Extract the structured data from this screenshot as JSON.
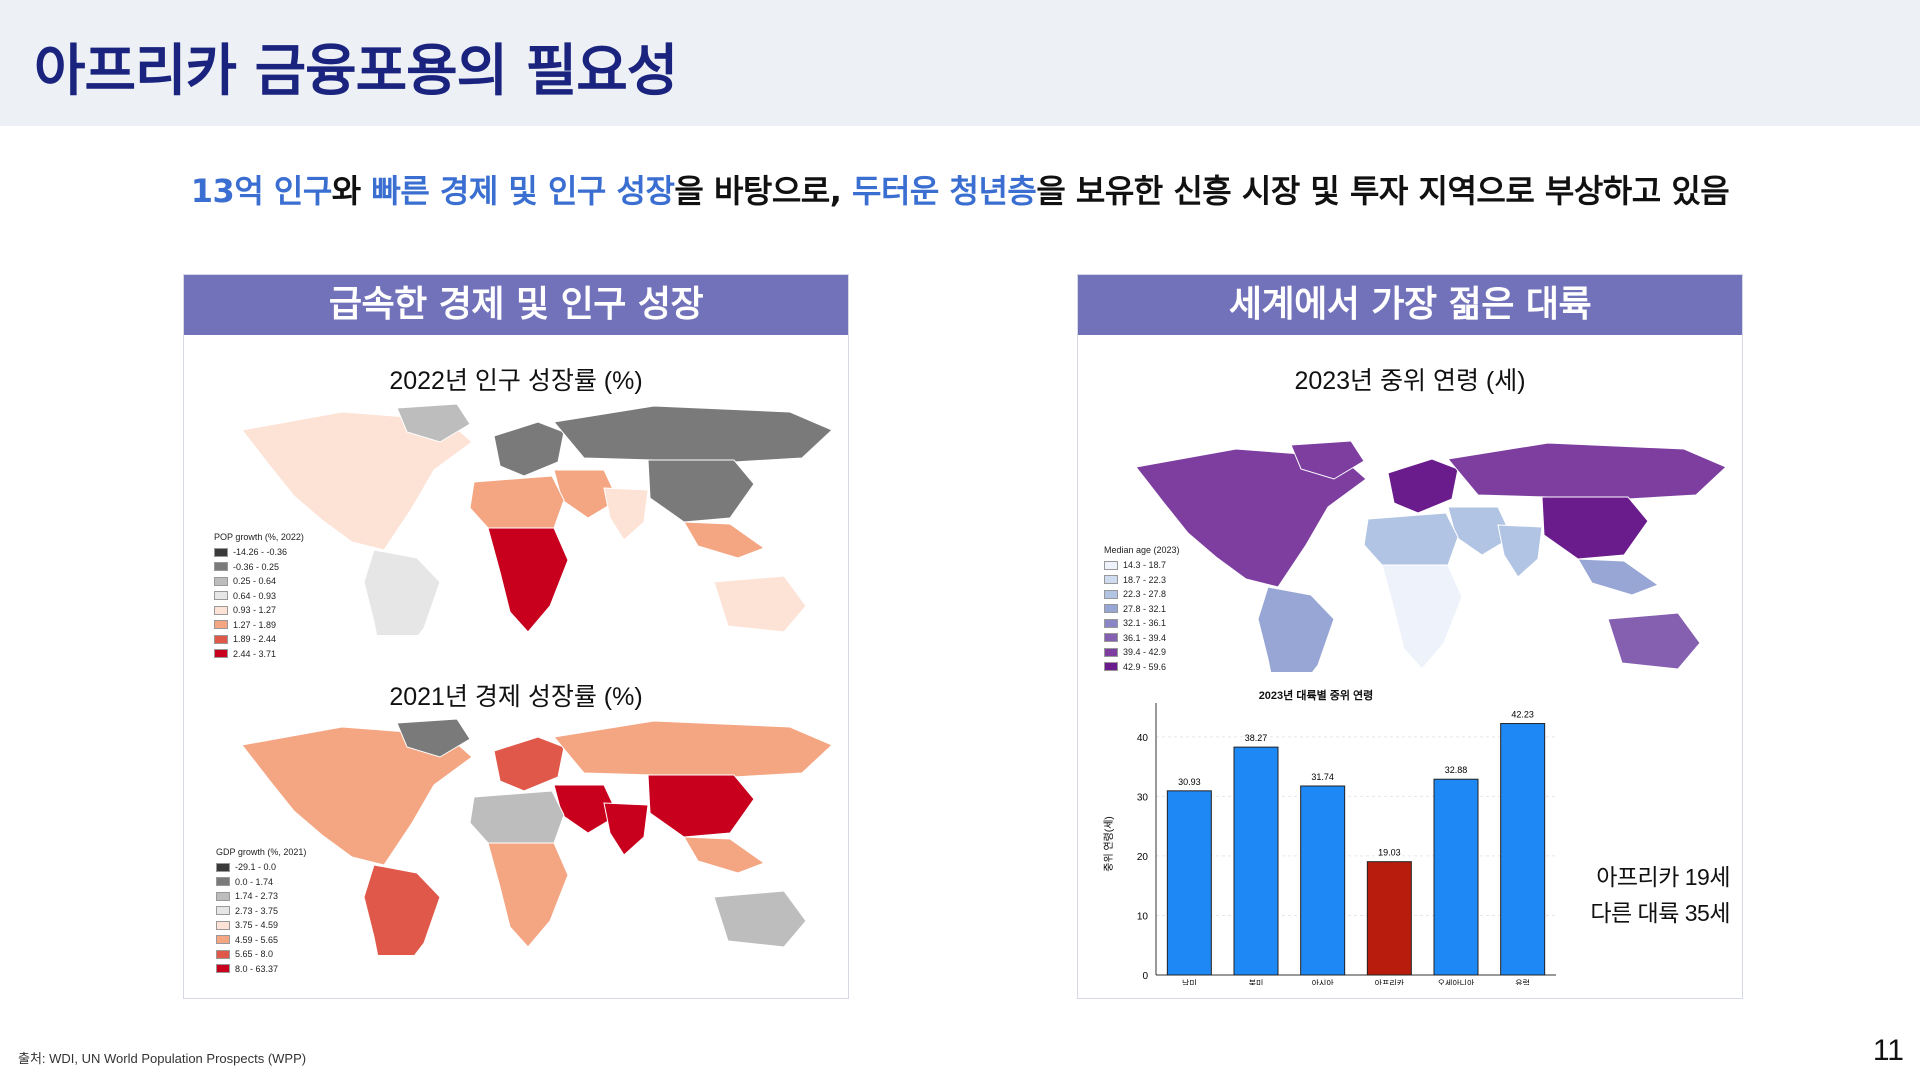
{
  "slide": {
    "title": "아프리카 금융포용의 필요성",
    "subtitle_parts": [
      {
        "text": "13억 인구",
        "highlight": true
      },
      {
        "text": "와 ",
        "highlight": false
      },
      {
        "text": "빠른 경제 및 인구 성장",
        "highlight": true
      },
      {
        "text": "을 바탕으로, ",
        "highlight": false
      },
      {
        "text": "두터운 청년층",
        "highlight": true
      },
      {
        "text": "을 보유한 신흥 시장 및 투자 지역으로 부상하고 있음",
        "highlight": false
      }
    ],
    "source": "출처: WDI, UN World Population Prospects (WPP)",
    "page_number": "11"
  },
  "colors": {
    "accent_blue": "#3a6fd1",
    "title_navy": "#1a237e",
    "panel_header": "#7272bb",
    "africa_bar": "#b71c0c",
    "other_bar": "#1e88f5"
  },
  "left_panel": {
    "header": "급속한 경제 및 인구 성장",
    "pop_map": {
      "title": "2022년 인구 성장률 (%)",
      "legend_title": "POP growth (%, 2022)",
      "legend": [
        {
          "label": "-14.26 - -0.36",
          "color": "#3a3a3a"
        },
        {
          "label": "-0.36 - 0.25",
          "color": "#7a7a7a"
        },
        {
          "label": "0.25 - 0.64",
          "color": "#bdbdbd"
        },
        {
          "label": "0.64 - 0.93",
          "color": "#e6e6e6"
        },
        {
          "label": "0.93 - 1.27",
          "color": "#fde2d6"
        },
        {
          "label": "1.27 - 1.89",
          "color": "#f4a582"
        },
        {
          "label": "1.89 - 2.44",
          "color": "#e0584a"
        },
        {
          "label": "2.44 - 3.71",
          "color": "#c8001e"
        }
      ]
    },
    "gdp_map": {
      "title": "2021년 경제 성장률 (%)",
      "legend_title": "GDP growth (%, 2021)",
      "legend": [
        {
          "label": "-29.1 - 0.0",
          "color": "#3a3a3a"
        },
        {
          "label": "0.0 - 1.74",
          "color": "#7a7a7a"
        },
        {
          "label": "1.74 - 2.73",
          "color": "#bdbdbd"
        },
        {
          "label": "2.73 - 3.75",
          "color": "#e6e6e6"
        },
        {
          "label": "3.75 - 4.59",
          "color": "#fde2d6"
        },
        {
          "label": "4.59 - 5.65",
          "color": "#f4a582"
        },
        {
          "label": "5.65 - 8.0",
          "color": "#e0584a"
        },
        {
          "label": "8.0 - 63.37",
          "color": "#c8001e"
        }
      ]
    }
  },
  "right_panel": {
    "header": "세계에서 가장 젊은 대륙",
    "age_map": {
      "title": "2023년 중위 연령 (세)",
      "legend_title": "Median age (2023)",
      "legend": [
        {
          "label": "14.3 - 18.7",
          "color": "#eef3fb"
        },
        {
          "label": "18.7 - 22.3",
          "color": "#cfdcef"
        },
        {
          "label": "22.3 - 27.8",
          "color": "#b2c4e3"
        },
        {
          "label": "27.8 - 32.1",
          "color": "#98a6d6"
        },
        {
          "label": "32.1 - 36.1",
          "color": "#8a86c6"
        },
        {
          "label": "36.1 - 39.4",
          "color": "#8560b0"
        },
        {
          "label": "39.4 - 42.9",
          "color": "#7d3ea0"
        },
        {
          "label": "42.9 - 59.6",
          "color": "#6a1b8c"
        }
      ]
    },
    "note_line1": "아프리카 19세",
    "note_line2": "다른 대륙 35세"
  },
  "chart_data": {
    "type": "bar",
    "title": "2023년 대륙별 중위 연령",
    "xlabel": "",
    "ylabel": "중위 연령(세)",
    "categories": [
      "남미",
      "북미",
      "아시아",
      "아프리카",
      "오세아니아",
      "유럽"
    ],
    "values": [
      30.93,
      38.27,
      31.74,
      19.03,
      32.88,
      42.23
    ],
    "ylim": [
      0,
      44
    ],
    "yticks": [
      0,
      10,
      20,
      30,
      40
    ],
    "grid": true,
    "highlight_category": "아프리카"
  }
}
